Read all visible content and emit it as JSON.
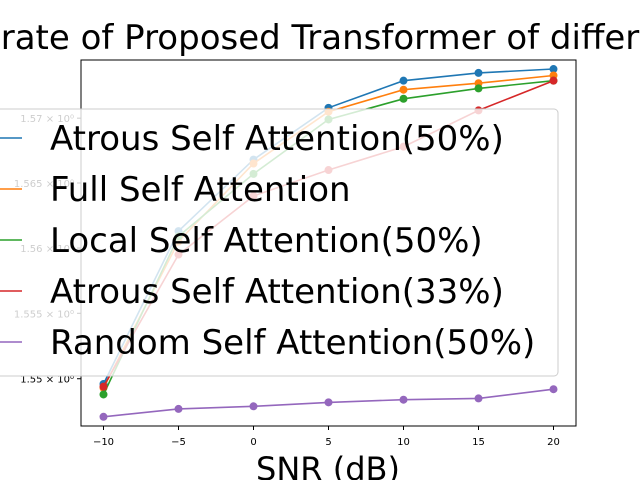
{
  "chart_data": {
    "type": "line",
    "title": "rate of Proposed Transformer of differ",
    "xlabel": "SNR (dB)",
    "ylabel": "",
    "x": [
      -10,
      -5,
      0,
      5,
      10,
      15,
      20
    ],
    "x_ticks": [
      "−10",
      "−5",
      "0",
      "5",
      "10",
      "15",
      "20"
    ],
    "xlim": [
      -11.5,
      21.5
    ],
    "y_scale": "log",
    "ylim": [
      1.5464,
      1.5745
    ],
    "y_ticks": [
      1.55,
      1.555,
      1.56,
      1.565,
      1.57
    ],
    "y_tick_labels": [
      "1.55 × 10⁰",
      "1.555 × 10⁰",
      "1.56 × 10⁰",
      "1.565 × 10⁰",
      "1.57 × 10⁰"
    ],
    "grid": false,
    "legend_position": "center",
    "series": [
      {
        "name": "Atrous Self Attention(50%)",
        "color": "#1f77b4",
        "values": [
          1.5496,
          1.5613,
          1.5668,
          1.5708,
          1.5729,
          1.5735,
          1.5738
        ]
      },
      {
        "name": "Full Self Attention",
        "color": "#ff7f0e",
        "values": [
          1.5493,
          1.5605,
          1.5665,
          1.5705,
          1.5722,
          1.5727,
          1.5733
        ]
      },
      {
        "name": "Local Self Attention(50%)",
        "color": "#2ca02c",
        "values": [
          1.5488,
          1.5609,
          1.5657,
          1.5699,
          1.5715,
          1.5723,
          1.5729
        ]
      },
      {
        "name": "Atrous Self Attention(33%)",
        "color": "#d62728",
        "values": [
          1.5494,
          1.5595,
          1.564,
          1.566,
          1.5678,
          1.5706,
          1.5729
        ]
      },
      {
        "name": "Random Self Attention(50%)",
        "color": "#9467bd",
        "values": [
          1.5471,
          1.5477,
          1.5479,
          1.5482,
          1.5484,
          1.5485,
          1.5492
        ]
      }
    ]
  }
}
